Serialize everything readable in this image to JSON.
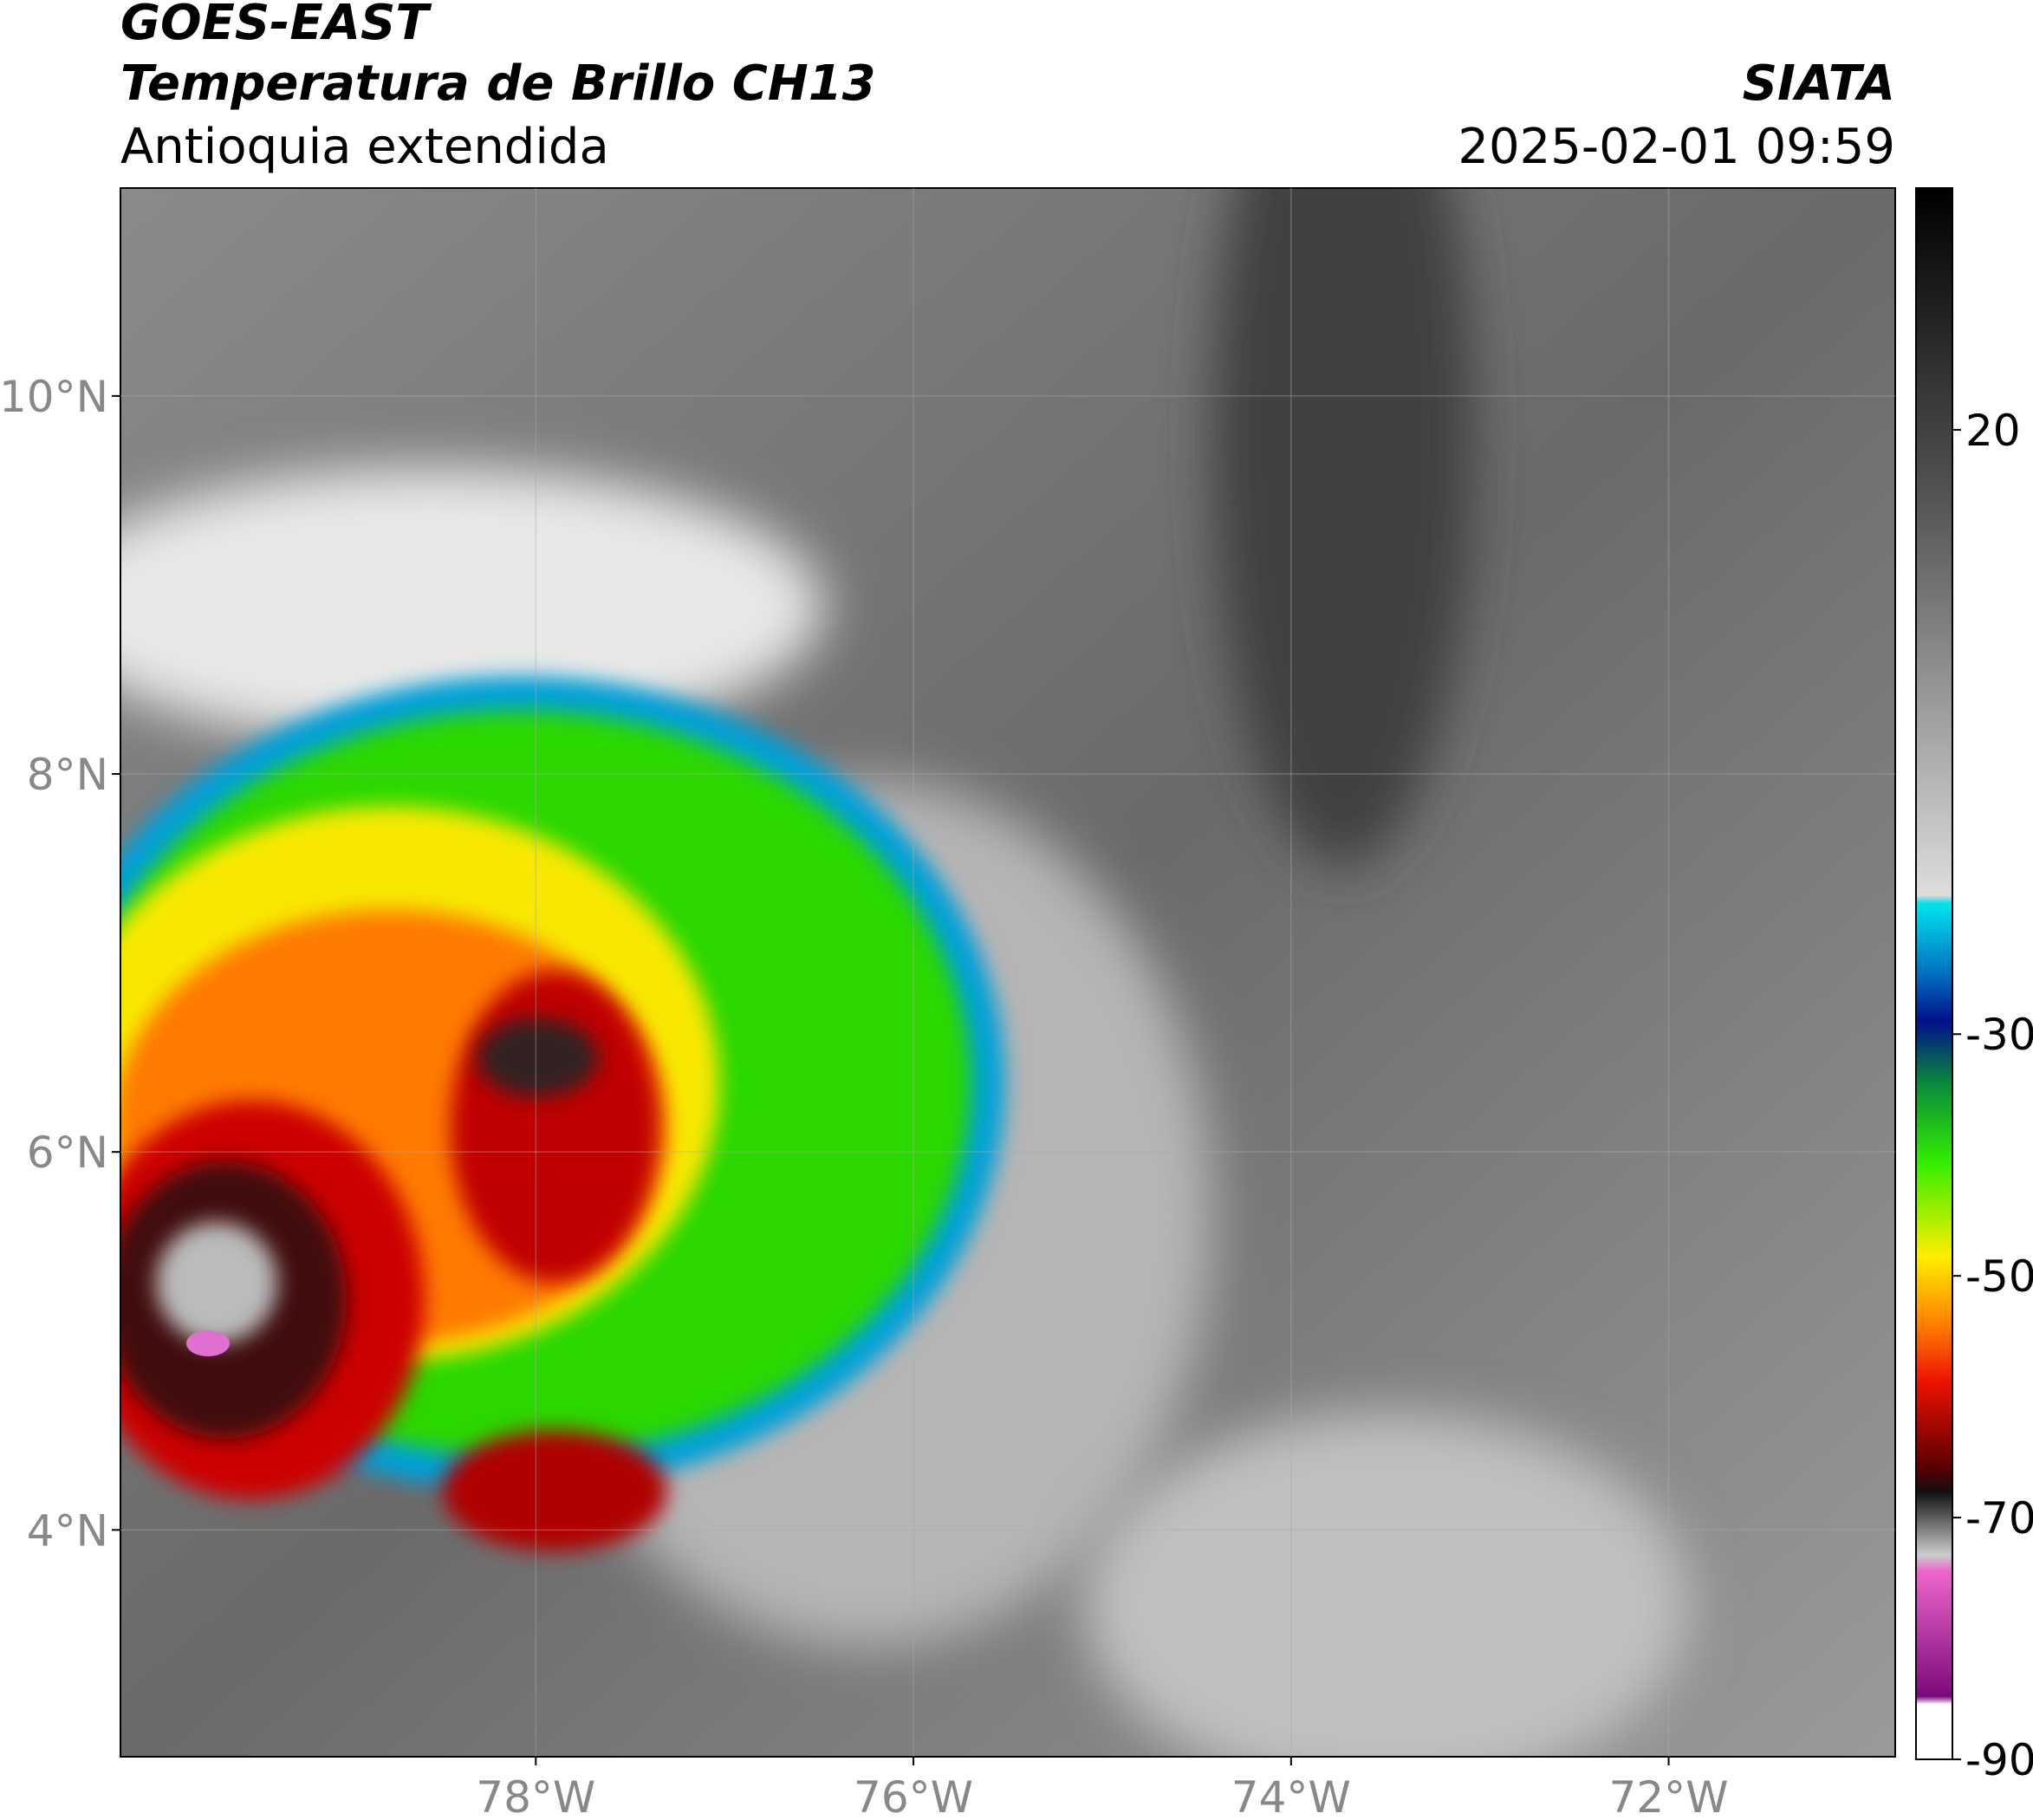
{
  "header": {
    "title": "GOES-EAST",
    "subtitle": "Temperatura de Brillo CH13",
    "region": "Antioquia extendida",
    "brand": "SIATA",
    "datetime": "2025-02-01 09:59"
  },
  "map": {
    "xlim": [
      -80.2,
      -70.8
    ],
    "ylim": [
      2.8,
      11.1
    ],
    "xticks": [
      {
        "value": -78,
        "label": "78°W"
      },
      {
        "value": -76,
        "label": "76°W"
      },
      {
        "value": -74,
        "label": "74°W"
      },
      {
        "value": -72,
        "label": "72°W"
      }
    ],
    "yticks": [
      {
        "value": 4,
        "label": "4°N"
      },
      {
        "value": 6,
        "label": "6°N"
      },
      {
        "value": 8,
        "label": "8°N"
      },
      {
        "value": 10,
        "label": "10°N"
      }
    ],
    "grid": true
  },
  "colorbar": {
    "clim": [
      -90,
      40
    ],
    "ticks": [
      20,
      -30,
      -50,
      -70,
      -90
    ]
  }
}
